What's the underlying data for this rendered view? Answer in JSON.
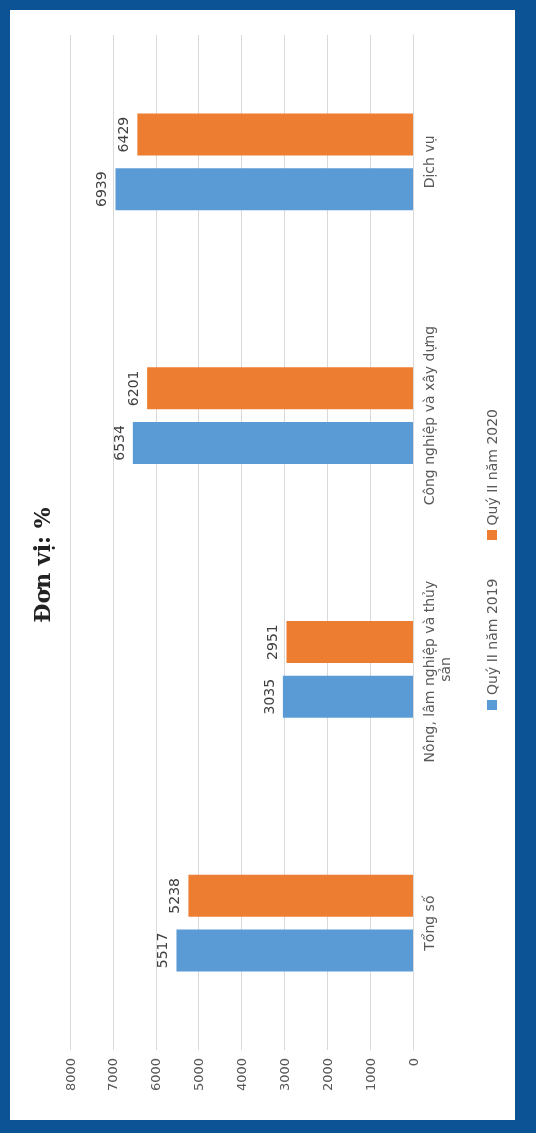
{
  "chart_data": {
    "type": "bar",
    "orientation": "horizontal",
    "title": "Đơn vị: %",
    "categories": [
      "Dịch vụ",
      "Công nghiệp và xây dựng",
      "Nông, lâm nghiệp và thủy sản",
      "Tổng số"
    ],
    "series": [
      {
        "name": "Quý II năm 2019",
        "color": "#5b9bd5",
        "values": [
          6939,
          6534,
          3035,
          5517
        ]
      },
      {
        "name": "Quý II năm 2020",
        "color": "#ed7d31",
        "values": [
          6429,
          6201,
          2951,
          5238
        ]
      }
    ],
    "xlim": [
      8000,
      0
    ],
    "xticks": [
      8000,
      7000,
      6000,
      5000,
      4000,
      3000,
      2000,
      1000,
      0
    ],
    "grid": "x",
    "legend": "right",
    "data_labels": true
  }
}
